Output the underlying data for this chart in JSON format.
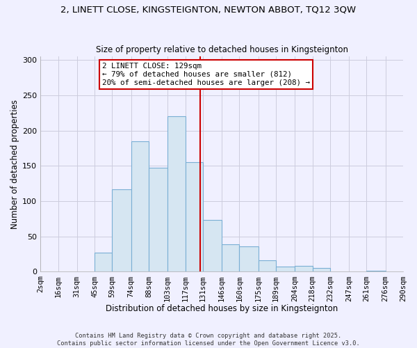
{
  "title1": "2, LINETT CLOSE, KINGSTEIGNTON, NEWTON ABBOT, TQ12 3QW",
  "title2": "Size of property relative to detached houses in Kingsteignton",
  "xlabel": "Distribution of detached houses by size in Kingsteignton",
  "ylabel": "Number of detached properties",
  "bin_labels": [
    "2sqm",
    "16sqm",
    "31sqm",
    "45sqm",
    "59sqm",
    "74sqm",
    "88sqm",
    "103sqm",
    "117sqm",
    "131sqm",
    "146sqm",
    "160sqm",
    "175sqm",
    "189sqm",
    "204sqm",
    "218sqm",
    "232sqm",
    "247sqm",
    "261sqm",
    "276sqm",
    "290sqm"
  ],
  "bin_edges": [
    2,
    16,
    31,
    45,
    59,
    74,
    88,
    103,
    117,
    131,
    146,
    160,
    175,
    189,
    204,
    218,
    232,
    247,
    261,
    276,
    290
  ],
  "bar_heights": [
    0,
    0,
    0,
    27,
    117,
    185,
    147,
    220,
    155,
    73,
    39,
    36,
    16,
    7,
    8,
    5,
    0,
    0,
    1,
    0
  ],
  "bar_color": "#d6e6f2",
  "bar_edge_color": "#7aafd4",
  "vline_x": 129,
  "vline_color": "#cc0000",
  "annotation_text": "2 LINETT CLOSE: 129sqm\n← 79% of detached houses are smaller (812)\n20% of semi-detached houses are larger (208) →",
  "annotation_box_color": "#ffffff",
  "annotation_box_edge": "#cc0000",
  "ylim": [
    0,
    305
  ],
  "yticks": [
    0,
    50,
    100,
    150,
    200,
    250,
    300
  ],
  "footnote1": "Contains HM Land Registry data © Crown copyright and database right 2025.",
  "footnote2": "Contains public sector information licensed under the Open Government Licence v3.0.",
  "bg_color": "#f0f0ff",
  "grid_color": "#ccccdd",
  "title1_fontsize": 9.5,
  "title2_fontsize": 8.5,
  "xlabel_fontsize": 8.5,
  "ylabel_fontsize": 8.5,
  "tick_fontsize": 7.5,
  "annot_fontsize": 7.8,
  "footnote_fontsize": 6.2
}
